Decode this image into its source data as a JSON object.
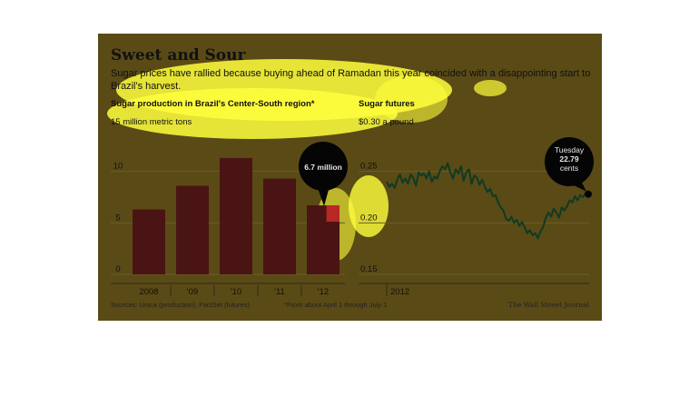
{
  "header": {
    "title": "Sweet and Sour",
    "subtitle": "Sugar prices have rallied because buying ahead of Ramadan this year coincided with a disappointing start to Brazil's harvest."
  },
  "footer": {
    "sources": "Sources: Unica (production); FactSet (futures)",
    "footnote": "*From about April 1 through July 1",
    "credit": "The Wall Street Journal"
  },
  "colors": {
    "panel": "#5a4a16",
    "bar": "#4a1414",
    "bar_highlight": "#cc2a2a",
    "line": "#0f3a24",
    "highlight": "#ffff3c"
  },
  "chart_data": [
    {
      "type": "bar",
      "title": "Sugar production in Brazil's Center-South region*",
      "unit_label": "15 million metric tons",
      "categories": [
        "2008",
        "'09",
        "'10",
        "'11",
        "'12"
      ],
      "values": [
        6.3,
        8.6,
        11.3,
        9.3,
        6.7
      ],
      "ylim": [
        0,
        15
      ],
      "yticks": [
        "0",
        "5",
        "10"
      ],
      "annotation": "6.7 million"
    },
    {
      "type": "line",
      "title": "Sugar futures",
      "unit_label": "$0.30 a pound",
      "xlabel": "2012",
      "ylim": [
        0.15,
        0.3
      ],
      "yticks": [
        "0.15",
        "0.20",
        "0.25"
      ],
      "values": [
        0.24,
        0.235,
        0.238,
        0.234,
        0.242,
        0.247,
        0.239,
        0.243,
        0.238,
        0.247,
        0.244,
        0.236,
        0.249,
        0.246,
        0.248,
        0.243,
        0.25,
        0.24,
        0.245,
        0.243,
        0.25,
        0.255,
        0.252,
        0.258,
        0.249,
        0.243,
        0.252,
        0.248,
        0.255,
        0.241,
        0.249,
        0.252,
        0.238,
        0.246,
        0.244,
        0.237,
        0.242,
        0.235,
        0.23,
        0.233,
        0.226,
        0.227,
        0.22,
        0.215,
        0.212,
        0.204,
        0.202,
        0.206,
        0.2,
        0.203,
        0.197,
        0.201,
        0.196,
        0.19,
        0.193,
        0.188,
        0.19,
        0.185,
        0.192,
        0.196,
        0.205,
        0.21,
        0.206,
        0.214,
        0.21,
        0.205,
        0.215,
        0.212,
        0.216,
        0.222,
        0.22,
        0.226,
        0.222,
        0.227,
        0.225,
        0.229,
        0.2279
      ],
      "annotation": [
        "Tuesday",
        "22.79",
        "cents"
      ]
    }
  ]
}
